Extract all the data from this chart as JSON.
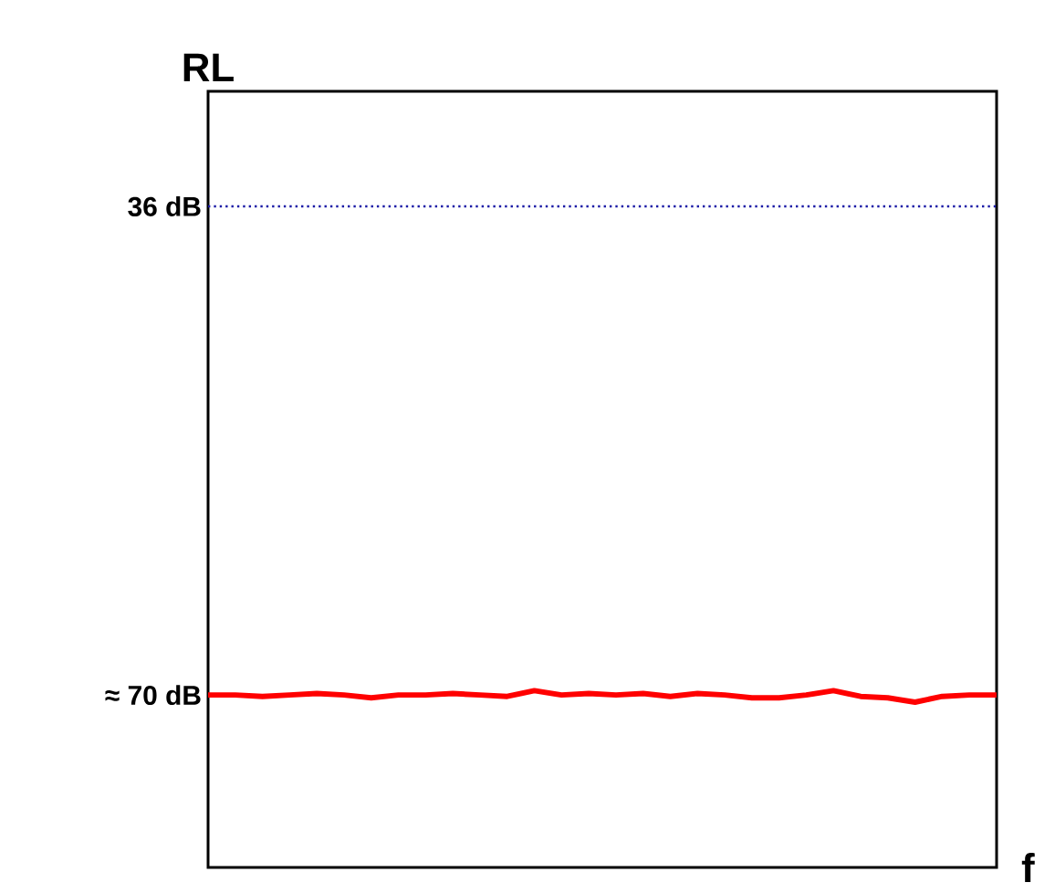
{
  "chart_data": {
    "type": "line",
    "xlabel": "f",
    "ylabel": "RL",
    "categories": [
      null,
      null,
      null,
      null,
      null,
      null,
      null,
      null,
      null,
      null,
      null,
      null,
      null,
      null,
      null,
      null,
      null,
      null,
      null,
      null,
      null,
      null,
      null,
      null,
      null,
      null,
      null,
      null,
      null,
      null
    ],
    "series": [
      {
        "color": "#ff0000",
        "values": [
          70,
          70,
          70.1,
          70,
          69.9,
          70,
          70.2,
          70,
          70,
          69.9,
          70,
          70.1,
          69.7,
          70,
          69.9,
          70,
          69.9,
          70.1,
          69.9,
          70,
          70.2,
          70.2,
          70,
          69.7,
          70.1,
          70.2,
          70.5,
          70.1,
          70,
          70
        ]
      }
    ],
    "ylim": [
      82,
      28
    ],
    "yticks": [
      {
        "value": 36,
        "label": "36 dB"
      },
      {
        "value": 70,
        "label": "≈ 70 dB"
      }
    ],
    "ref_lines": [
      {
        "axis": "y",
        "value": 36,
        "color": "#1a1aa6",
        "line_style": "dotted"
      }
    ],
    "tick_labels": "y",
    "grid": false,
    "marker": "none",
    "line_style": "solid"
  }
}
